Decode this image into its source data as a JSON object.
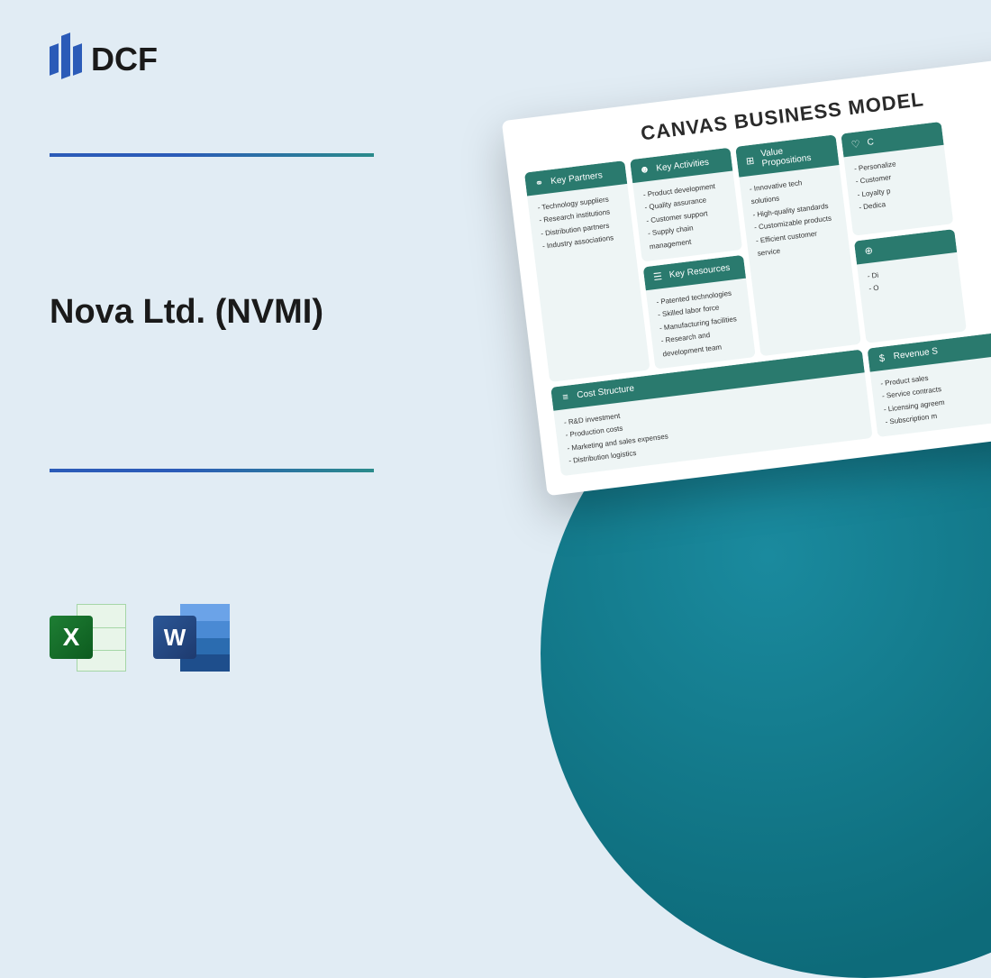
{
  "logo": {
    "text": "DCF"
  },
  "title": "Nova Ltd. (NVMI)",
  "appIcons": {
    "excel": "X",
    "word": "W"
  },
  "canvas": {
    "title": "CANVAS BUSINESS MODEL",
    "blocks": {
      "keyPartners": {
        "label": "Key Partners",
        "items": [
          "Technology suppliers",
          "Research institutions",
          "Distribution partners",
          "Industry associations"
        ]
      },
      "keyActivities": {
        "label": "Key Activities",
        "items": [
          "Product development",
          "Quality assurance",
          "Customer support",
          "Supply chain management"
        ]
      },
      "keyResources": {
        "label": "Key Resources",
        "items": [
          "Patented technologies",
          "Skilled labor force",
          "Manufacturing facilities",
          "Research and development team"
        ]
      },
      "valueProps": {
        "label": "Value Propositions",
        "items": [
          "Innovative tech solutions",
          "High-quality standards",
          "Customizable products",
          "Efficient customer service"
        ]
      },
      "custRel": {
        "label": "C",
        "items": [
          "Personalize",
          "Customer",
          "Loyalty p",
          "Dedica"
        ]
      },
      "channels": {
        "label": "",
        "items": [
          "Di",
          "O",
          "",
          ""
        ]
      },
      "costStructure": {
        "label": "Cost Structure",
        "items": [
          "R&D investment",
          "Production costs",
          "Marketing and sales expenses",
          "Distribution logistics"
        ]
      },
      "revenue": {
        "label": "Revenue S",
        "items": [
          "Product sales",
          "Service contracts",
          "Licensing agreem",
          "Subscription m"
        ]
      }
    }
  },
  "colors": {
    "background": "#e1ecf4",
    "logoBlue": "#2b5bb8",
    "tealDark": "#0d6b7a",
    "canvasHeader": "#2a7a6e",
    "canvasBody": "#eef5f5"
  }
}
